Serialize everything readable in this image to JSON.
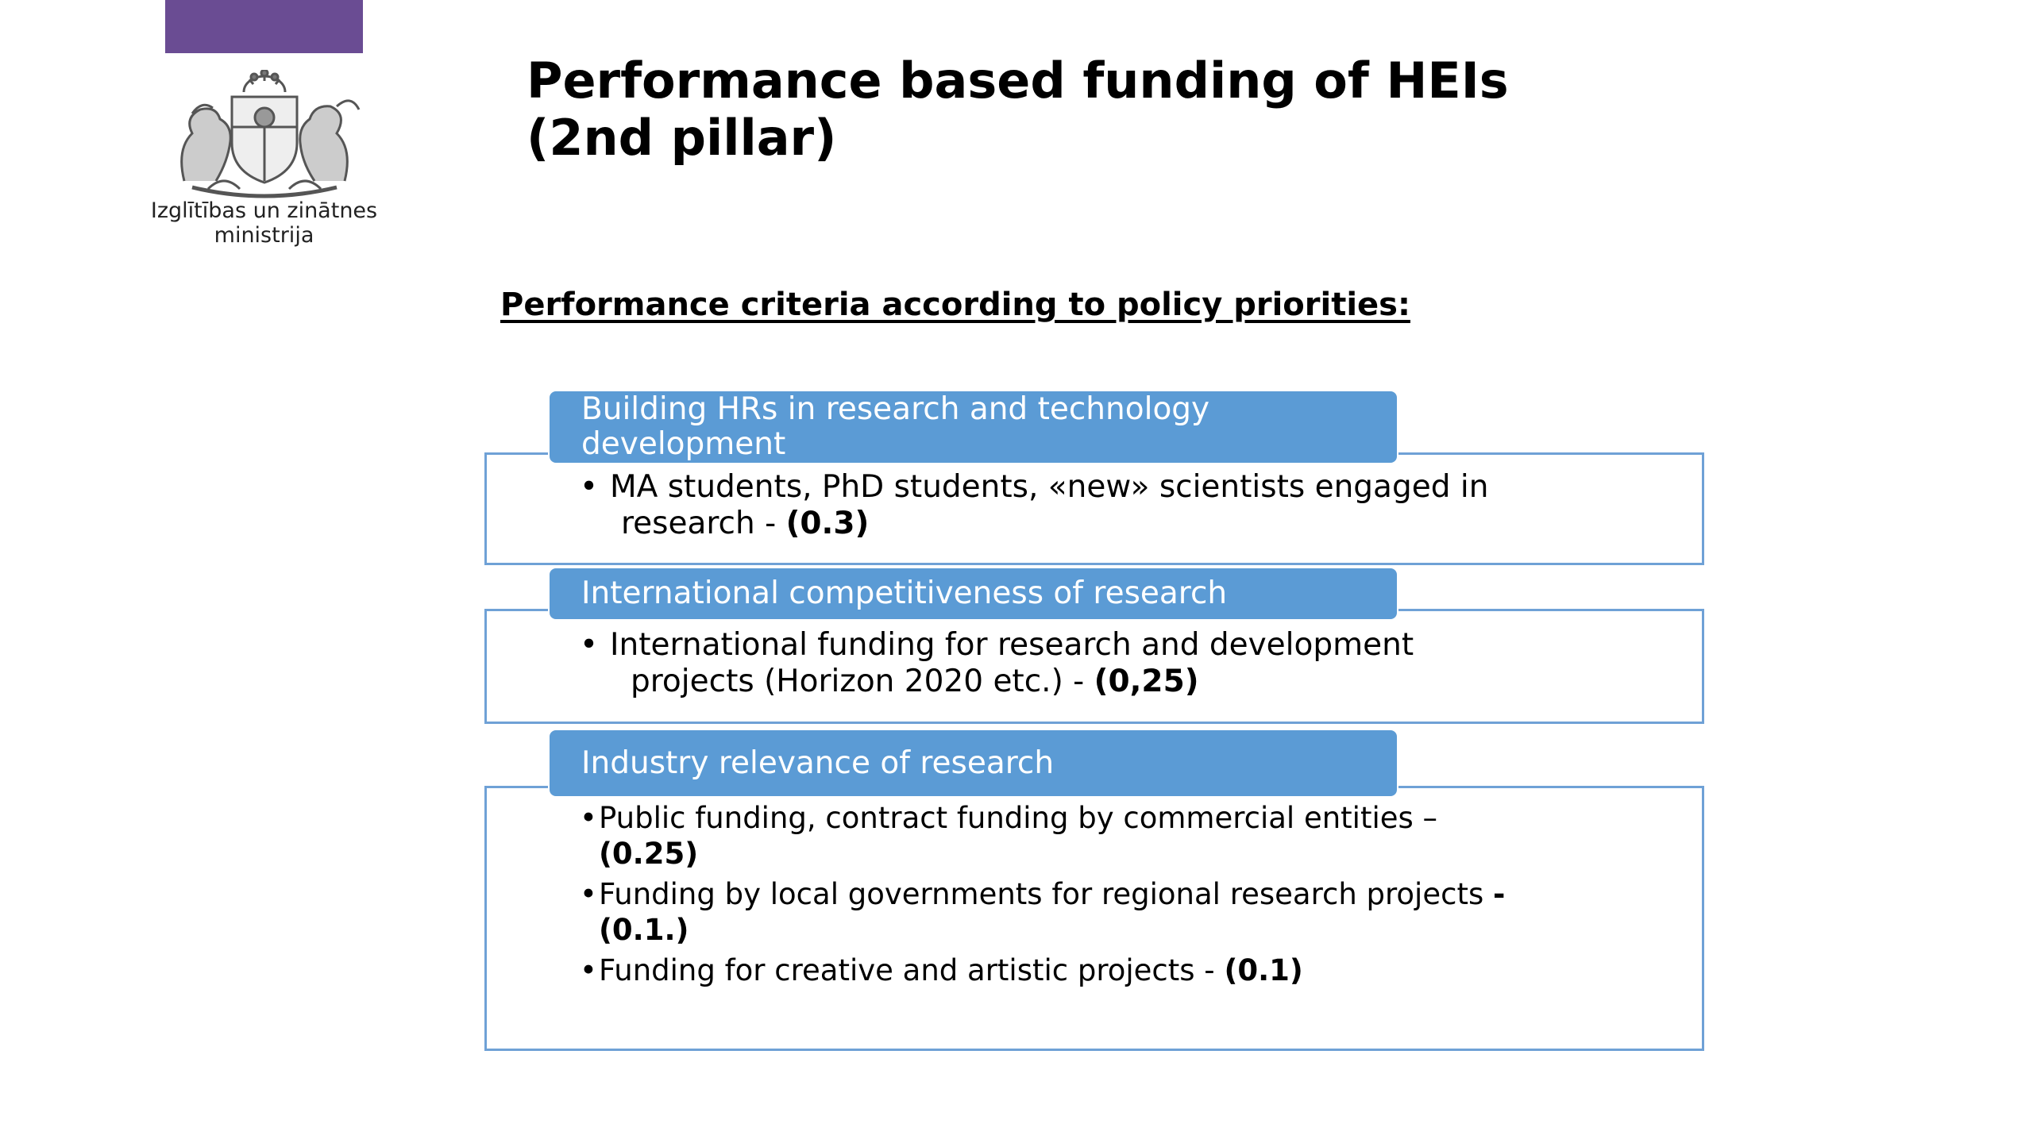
{
  "logo": {
    "accent_color": "#6a4c93",
    "emblem": "latvia-coat-of-arms",
    "ministry_line1": "Izglītības un zinātnes",
    "ministry_line2": "ministrija"
  },
  "title": {
    "line1": "Performance based funding of HEIs",
    "line2": "(2nd pillar)"
  },
  "subtitle": "Performance criteria according to policy priorities:",
  "colors": {
    "header_fill": "#5b9bd5",
    "box_border": "#6fa1d6"
  },
  "criteria": [
    {
      "header_line1": "Building HRs in research and technology",
      "header_line2": "development",
      "items": [
        {
          "text_line1": "MA students, PhD students, «new» scientists engaged in",
          "text_line2": "research -  ",
          "value": "(0.3)"
        }
      ]
    },
    {
      "header": "International competitiveness of research",
      "items": [
        {
          "text_line1": "International funding for  research and development",
          "text_line2": "projects  (Horizon 2020 etc.)  - ",
          "value": "(0,25)"
        }
      ]
    },
    {
      "header": "Industry relevance of research",
      "items": [
        {
          "text_line1": "Public funding, contract funding by commercial entities –",
          "value": "(0.25)"
        },
        {
          "text_line1": "Funding by local governments for regional research projects  ",
          "dash": "-",
          "value": "(0.1.)"
        },
        {
          "text_line1": "Funding for creative and artistic projects - ",
          "value": "(0.1)"
        }
      ]
    }
  ]
}
